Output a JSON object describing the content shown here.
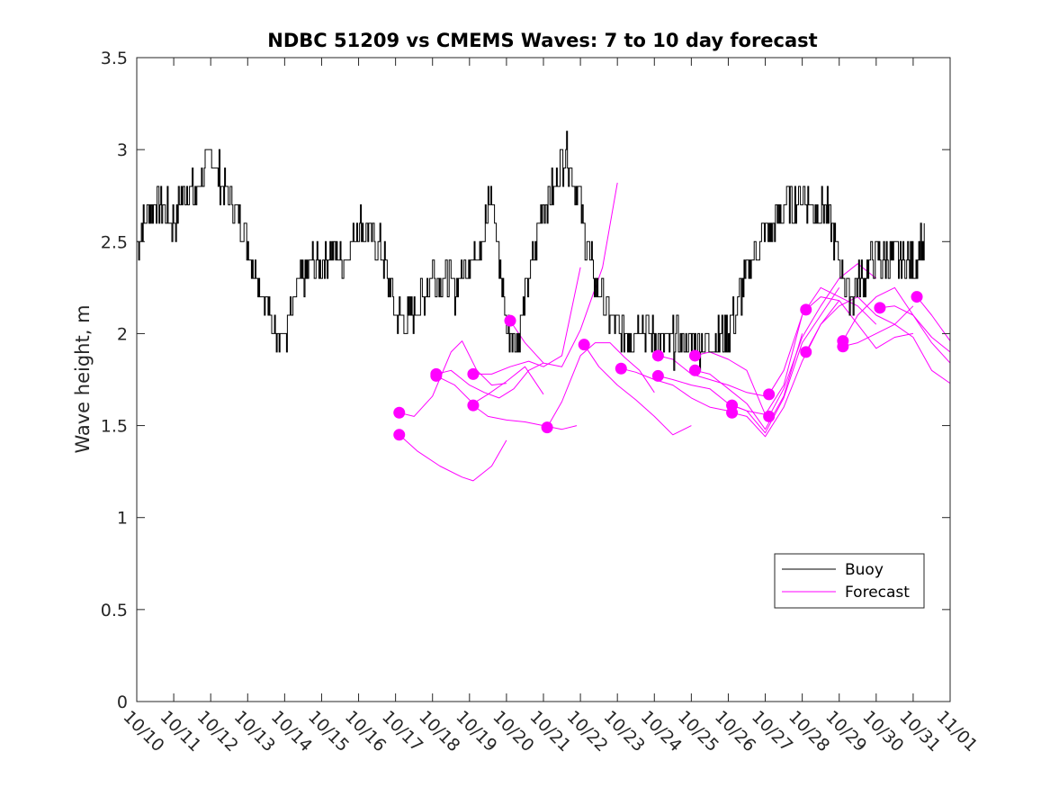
{
  "chart_data": {
    "type": "line",
    "title": "NDBC 51209 vs CMEMS Waves: 7 to 10 day forecast",
    "xlabel": "",
    "ylabel": "Wave height, m",
    "xlim": [
      0,
      22
    ],
    "ylim": [
      0,
      3.5
    ],
    "x_tick_labels": [
      "10/10",
      "10/11",
      "10/12",
      "10/13",
      "10/14",
      "10/15",
      "10/16",
      "10/17",
      "10/18",
      "10/19",
      "10/20",
      "10/21",
      "10/22",
      "10/23",
      "10/24",
      "10/25",
      "10/26",
      "10/27",
      "10/28",
      "10/29",
      "10/30",
      "10/31",
      "11/01"
    ],
    "y_ticks": [
      0,
      0.5,
      1,
      1.5,
      2,
      2.5,
      3,
      3.5
    ],
    "y_tick_labels": [
      "0",
      "0.5",
      "1",
      "1.5",
      "2",
      "2.5",
      "3",
      "3.5"
    ],
    "x_units": "days since 10/10",
    "legend": {
      "position": "lower-right",
      "entries": [
        {
          "label": "Buoy",
          "color": "#000000"
        },
        {
          "label": "Forecast",
          "color": "#ff00ff"
        }
      ]
    },
    "colors": {
      "buoy": "#000000",
      "forecast": "#ff00ff"
    },
    "buoy": {
      "name": "Buoy",
      "x": [
        0,
        0.5,
        1,
        1.3,
        1.6,
        2,
        2.3,
        2.6,
        3,
        3.3,
        3.6,
        4,
        4.3,
        4.6,
        5,
        5.3,
        5.6,
        6,
        6.3,
        6.6,
        7,
        7.3,
        7.6,
        8,
        8.3,
        8.6,
        9,
        9.3,
        9.6,
        10,
        10.3,
        10.6,
        11,
        11.3,
        11.6,
        12,
        12.3,
        12.6,
        13,
        13.3,
        13.6,
        14,
        14.3,
        14.6,
        15,
        15.3,
        15.6,
        16,
        16.3,
        16.6,
        17,
        17.3,
        17.6,
        18,
        18.3,
        18.6,
        19,
        19.3,
        19.6,
        20,
        20.3,
        20.6,
        21,
        21.3
      ],
      "y": [
        2.5,
        2.75,
        2.6,
        2.8,
        2.75,
        3.0,
        2.8,
        2.7,
        2.5,
        2.3,
        2.1,
        1.95,
        2.2,
        2.35,
        2.4,
        2.45,
        2.4,
        2.6,
        2.55,
        2.45,
        2.1,
        2.05,
        2.15,
        2.35,
        2.3,
        2.25,
        2.4,
        2.5,
        2.75,
        2.05,
        1.95,
        2.3,
        2.7,
        2.8,
        3.0,
        2.7,
        2.35,
        2.2,
        2.0,
        2.0,
        2.05,
        2.0,
        1.95,
        1.95,
        1.95,
        1.95,
        1.95,
        2.0,
        2.2,
        2.4,
        2.55,
        2.6,
        2.7,
        2.75,
        2.7,
        2.7,
        2.4,
        2.2,
        2.3,
        2.4,
        2.4,
        2.4,
        2.4,
        2.5
      ]
    },
    "forecast_series": [
      {
        "name": "Forecast run 1",
        "x": [
          7.1,
          7.6,
          8.2,
          8.8,
          9.1,
          9.6,
          10.0
        ],
        "y": [
          1.45,
          1.36,
          1.28,
          1.22,
          1.2,
          1.28,
          1.42
        ]
      },
      {
        "name": "Forecast run 2",
        "x": [
          7.1,
          7.5,
          8.0,
          8.5,
          8.8,
          9.2,
          9.6,
          10.0
        ],
        "y": [
          1.57,
          1.55,
          1.66,
          1.9,
          1.96,
          1.8,
          1.72,
          1.73
        ]
      },
      {
        "name": "Forecast run 3",
        "x": [
          8.1,
          8.6,
          9.1,
          9.5,
          10.0,
          10.5,
          11.0
        ],
        "y": [
          1.77,
          1.72,
          1.62,
          1.67,
          1.74,
          1.82,
          1.67
        ]
      },
      {
        "name": "Forecast run 4",
        "x": [
          8.1,
          8.5,
          9.0,
          9.4,
          9.8,
          10.2,
          10.6,
          11.0
        ],
        "y": [
          1.78,
          1.8,
          1.72,
          1.68,
          1.65,
          1.7,
          1.8,
          1.84
        ]
      },
      {
        "name": "Forecast run 5",
        "x": [
          9.1,
          9.5,
          10.0,
          10.5,
          11.0,
          11.5,
          11.9
        ],
        "y": [
          1.61,
          1.55,
          1.53,
          1.52,
          1.5,
          1.48,
          1.5
        ]
      },
      {
        "name": "Forecast run 6",
        "x": [
          9.1,
          9.6,
          10.1,
          10.6,
          11.0,
          11.5,
          12.0
        ],
        "y": [
          1.78,
          1.78,
          1.82,
          1.85,
          1.82,
          1.88,
          2.36
        ]
      },
      {
        "name": "Forecast run 7",
        "x": [
          10.1,
          10.5,
          11.0,
          11.5,
          12.0,
          12.6,
          13.0
        ],
        "y": [
          2.07,
          1.95,
          1.84,
          1.82,
          2.02,
          2.36,
          2.82
        ]
      },
      {
        "name": "Forecast run 8",
        "x": [
          11.1,
          11.5,
          12.0,
          12.4,
          12.8,
          13.2,
          13.6,
          14.0
        ],
        "y": [
          1.49,
          1.63,
          1.88,
          1.95,
          1.95,
          1.87,
          1.8,
          1.68
        ]
      },
      {
        "name": "Forecast run 9",
        "x": [
          12.1,
          12.5,
          13.0,
          13.5,
          14.0,
          14.5,
          15.0
        ],
        "y": [
          1.94,
          1.82,
          1.72,
          1.64,
          1.55,
          1.45,
          1.5
        ]
      },
      {
        "name": "Forecast run 10",
        "x": [
          13.1,
          13.5,
          14.0,
          14.5,
          15.0,
          15.5,
          16.0
        ],
        "y": [
          1.81,
          1.79,
          1.75,
          1.72,
          1.65,
          1.6,
          1.58
        ]
      },
      {
        "name": "Forecast run 11",
        "x": [
          14.1,
          14.5,
          15.0,
          15.5,
          16.0,
          16.5,
          17.0
        ],
        "y": [
          1.88,
          1.86,
          1.78,
          1.75,
          1.72,
          1.68,
          1.66
        ]
      },
      {
        "name": "Forecast run 12",
        "x": [
          14.1,
          14.5,
          15.0,
          15.5,
          16.0,
          16.5,
          17.0
        ],
        "y": [
          1.77,
          1.75,
          1.72,
          1.7,
          1.62,
          1.58,
          1.56
        ]
      },
      {
        "name": "Forecast run 13",
        "x": [
          15.1,
          15.5,
          16.0,
          16.5,
          17.0,
          17.5,
          18.0
        ],
        "y": [
          1.88,
          1.9,
          1.86,
          1.8,
          1.56,
          1.72,
          2.1
        ]
      },
      {
        "name": "Forecast run 14",
        "x": [
          15.1,
          15.5,
          16.0,
          16.5,
          17.0,
          17.5,
          18.0
        ],
        "y": [
          1.8,
          1.78,
          1.7,
          1.62,
          1.48,
          1.66,
          2.0
        ]
      },
      {
        "name": "Forecast run 15",
        "x": [
          16.1,
          16.5,
          17.0,
          17.5,
          18.0,
          18.5,
          19.0
        ],
        "y": [
          1.61,
          1.58,
          1.46,
          1.65,
          1.95,
          2.1,
          2.25
        ]
      },
      {
        "name": "Forecast run 16",
        "x": [
          16.1,
          16.5,
          17.0,
          17.5,
          18.0,
          18.5,
          19.0
        ],
        "y": [
          1.57,
          1.55,
          1.44,
          1.6,
          1.85,
          2.05,
          2.18
        ]
      },
      {
        "name": "Forecast run 17",
        "x": [
          17.1,
          17.5,
          18.0,
          18.5,
          19.0,
          19.5,
          20.0
        ],
        "y": [
          1.67,
          1.8,
          2.1,
          2.25,
          2.2,
          2.15,
          2.05
        ]
      },
      {
        "name": "Forecast run 18",
        "x": [
          17.1,
          17.5,
          18.0,
          18.5,
          19.0,
          19.5,
          20.0
        ],
        "y": [
          1.55,
          1.7,
          1.98,
          2.15,
          2.3,
          2.38,
          2.3
        ]
      },
      {
        "name": "Forecast run 19",
        "x": [
          18.1,
          18.5,
          19.0,
          19.5,
          20.0,
          20.5,
          21.0
        ],
        "y": [
          2.13,
          2.2,
          2.18,
          2.05,
          1.92,
          1.98,
          2.0
        ]
      },
      {
        "name": "Forecast run 20",
        "x": [
          18.1,
          18.5,
          19.0,
          19.5,
          20.0,
          20.5,
          21.0
        ],
        "y": [
          1.9,
          2.05,
          2.15,
          2.2,
          2.1,
          2.05,
          2.15
        ]
      },
      {
        "name": "Forecast run 21",
        "x": [
          19.1,
          19.5,
          20.0,
          20.5,
          21.0,
          21.5,
          22.0
        ],
        "y": [
          1.96,
          2.1,
          2.2,
          2.25,
          2.1,
          1.95,
          1.84
        ]
      },
      {
        "name": "Forecast run 22",
        "x": [
          19.1,
          19.5,
          20.0,
          20.5,
          21.0,
          21.5,
          22.0
        ],
        "y": [
          1.93,
          1.95,
          2.0,
          2.05,
          1.98,
          1.8,
          1.73
        ]
      },
      {
        "name": "Forecast run 23",
        "x": [
          20.1,
          20.5,
          21.0,
          21.5,
          22.0
        ],
        "y": [
          2.14,
          2.15,
          2.1,
          1.98,
          1.9
        ]
      },
      {
        "name": "Forecast run 24",
        "x": [
          21.1,
          21.5,
          22.0
        ],
        "y": [
          2.2,
          2.1,
          1.96
        ]
      }
    ],
    "forecast_markers": {
      "x": [
        7.1,
        7.1,
        8.1,
        8.1,
        9.1,
        9.1,
        10.1,
        11.1,
        12.1,
        13.1,
        14.1,
        14.1,
        15.1,
        15.1,
        16.1,
        16.1,
        17.1,
        17.1,
        18.1,
        18.1,
        19.1,
        19.1,
        20.1,
        21.1
      ],
      "y": [
        1.57,
        1.45,
        1.77,
        1.78,
        1.61,
        1.78,
        2.07,
        1.49,
        1.94,
        1.81,
        1.88,
        1.77,
        1.88,
        1.8,
        1.61,
        1.57,
        1.67,
        1.55,
        2.13,
        1.9,
        1.96,
        1.93,
        2.14,
        2.2
      ]
    }
  }
}
